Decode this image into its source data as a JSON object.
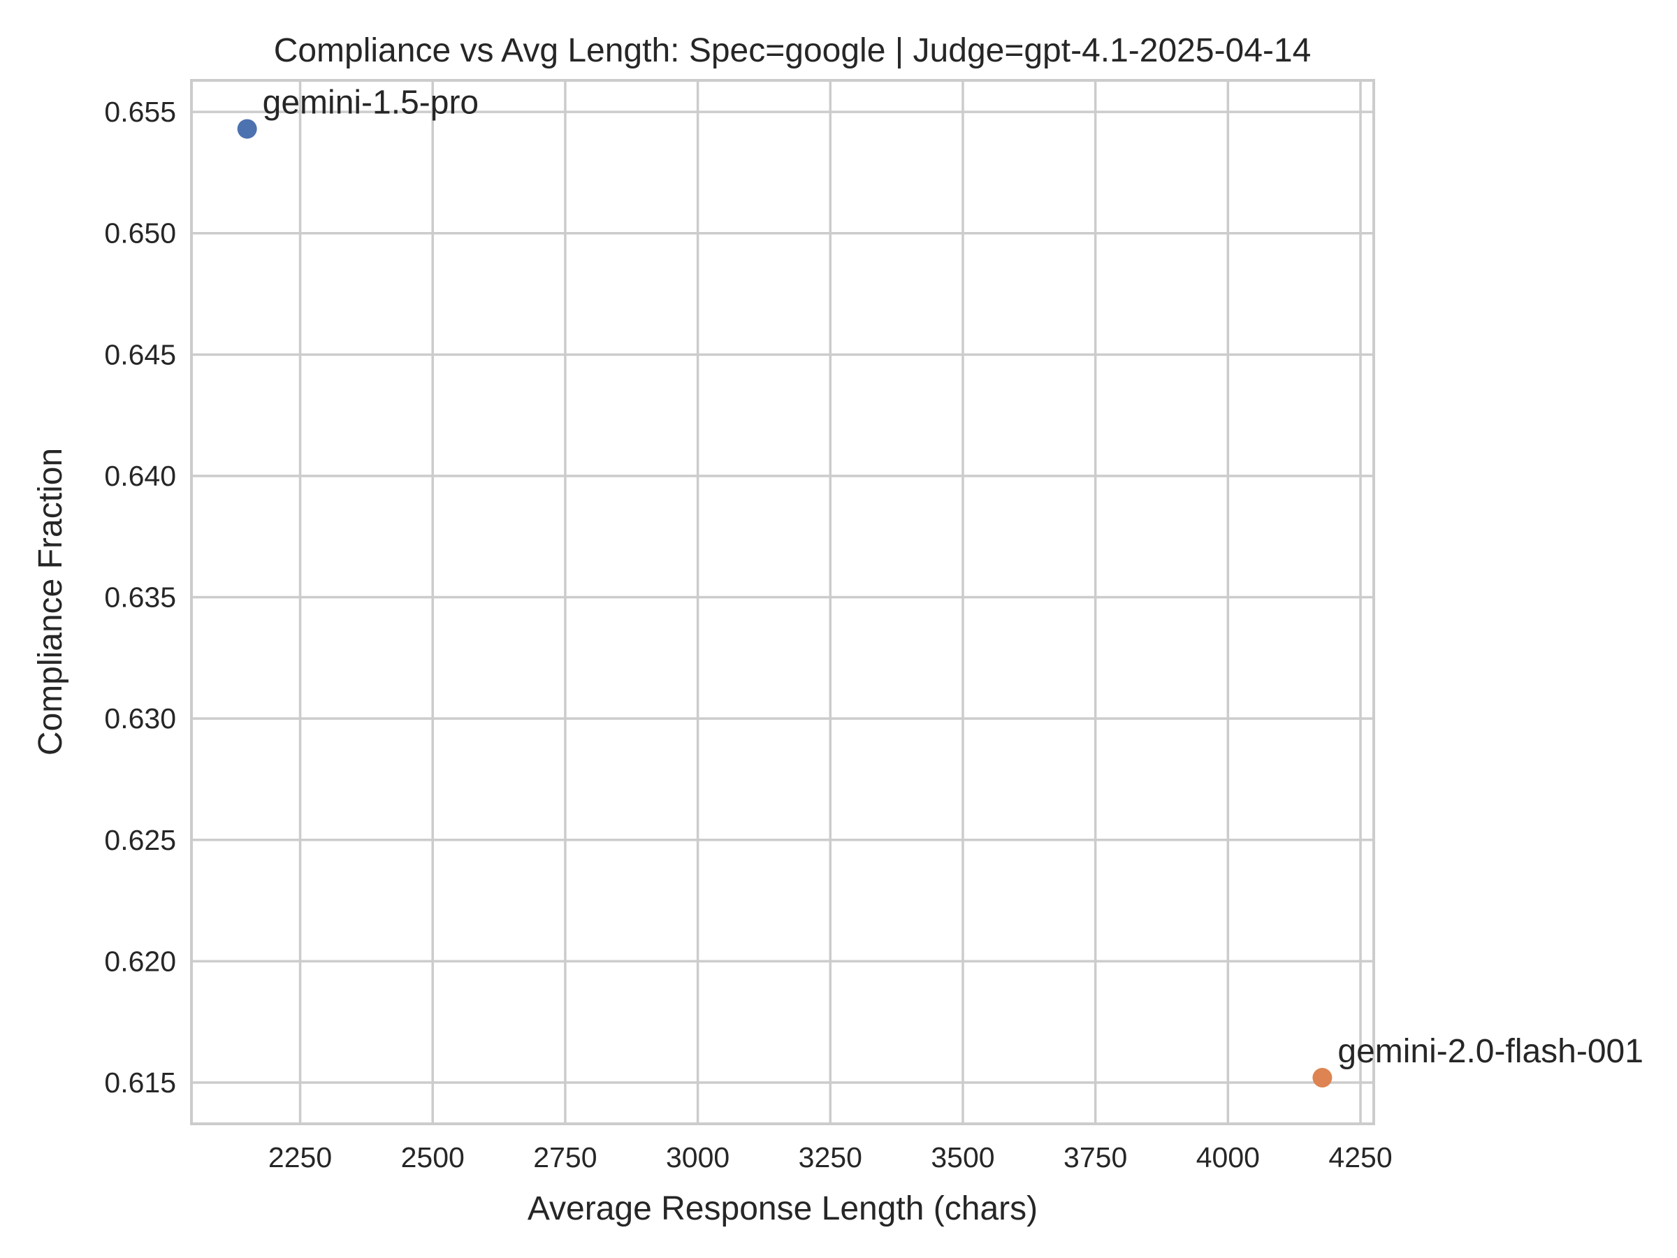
{
  "chart_data": {
    "type": "scatter",
    "title": "Compliance vs Avg Length: Spec=google | Judge=gpt-4.1-2025-04-14",
    "xlabel": "Average Response Length (chars)",
    "ylabel": "Compliance Fraction",
    "xlim": [
      2045,
      4275
    ],
    "ylim": [
      0.6133,
      0.6563
    ],
    "xticks": [
      2250,
      2500,
      2750,
      3000,
      3250,
      3500,
      3750,
      4000,
      4250
    ],
    "yticks": [
      0.615,
      0.62,
      0.625,
      0.63,
      0.635,
      0.64,
      0.645,
      0.65,
      0.655
    ],
    "ytick_labels": [
      "0.615",
      "0.620",
      "0.625",
      "0.630",
      "0.635",
      "0.640",
      "0.645",
      "0.650",
      "0.655"
    ],
    "grid": true,
    "points": [
      {
        "label": "gemini-1.5-pro",
        "x": 2150,
        "y": 0.6543,
        "color": "#4c72b0"
      },
      {
        "label": "gemini-2.0-flash-001",
        "x": 4178,
        "y": 0.6152,
        "color": "#dd8452"
      }
    ]
  }
}
